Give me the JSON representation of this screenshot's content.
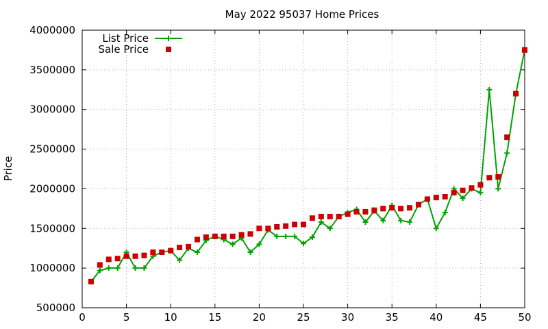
{
  "chart_data": {
    "type": "line",
    "title": "May 2022 95037 Home Prices",
    "xlabel": "",
    "ylabel": "Price",
    "xlim": [
      0,
      50
    ],
    "ylim": [
      500000,
      4000000
    ],
    "xticks": [
      0,
      5,
      10,
      15,
      20,
      25,
      30,
      35,
      40,
      45,
      50
    ],
    "yticks": [
      500000,
      1000000,
      1500000,
      2000000,
      2500000,
      3000000,
      3500000,
      4000000
    ],
    "grid": true,
    "legend_position": "top-left",
    "x": [
      1,
      2,
      3,
      4,
      5,
      6,
      7,
      8,
      9,
      10,
      11,
      12,
      13,
      14,
      15,
      16,
      17,
      18,
      19,
      20,
      21,
      22,
      23,
      24,
      25,
      26,
      27,
      28,
      29,
      30,
      31,
      32,
      33,
      34,
      35,
      36,
      37,
      38,
      39,
      40,
      41,
      42,
      43,
      44,
      45,
      46,
      47,
      48,
      49,
      50
    ],
    "series": [
      {
        "name": "List Price",
        "style": "line-cross",
        "color": "#00a000",
        "values": [
          830000,
          970000,
          1000000,
          1000000,
          1200000,
          1000000,
          1000000,
          1150000,
          1200000,
          1220000,
          1100000,
          1250000,
          1200000,
          1350000,
          1400000,
          1360000,
          1300000,
          1380000,
          1200000,
          1300000,
          1480000,
          1400000,
          1400000,
          1400000,
          1310000,
          1390000,
          1580000,
          1500000,
          1650000,
          1700000,
          1740000,
          1580000,
          1720000,
          1600000,
          1790000,
          1600000,
          1580000,
          1800000,
          1870000,
          1500000,
          1700000,
          2000000,
          1880000,
          2000000,
          1950000,
          3250000,
          2000000,
          2450000,
          3200000,
          3750000
        ]
      },
      {
        "name": "Sale Price",
        "style": "square",
        "color": "#cc0000",
        "values": [
          830000,
          1040000,
          1110000,
          1120000,
          1150000,
          1150000,
          1160000,
          1200000,
          1200000,
          1220000,
          1260000,
          1270000,
          1360000,
          1390000,
          1400000,
          1400000,
          1400000,
          1420000,
          1430000,
          1500000,
          1500000,
          1520000,
          1530000,
          1550000,
          1550000,
          1630000,
          1650000,
          1650000,
          1650000,
          1680000,
          1710000,
          1710000,
          1730000,
          1750000,
          1760000,
          1750000,
          1760000,
          1800000,
          1870000,
          1890000,
          1900000,
          1950000,
          1980000,
          2010000,
          2050000,
          2140000,
          2150000,
          2650000,
          3200000,
          3750000
        ]
      }
    ]
  }
}
